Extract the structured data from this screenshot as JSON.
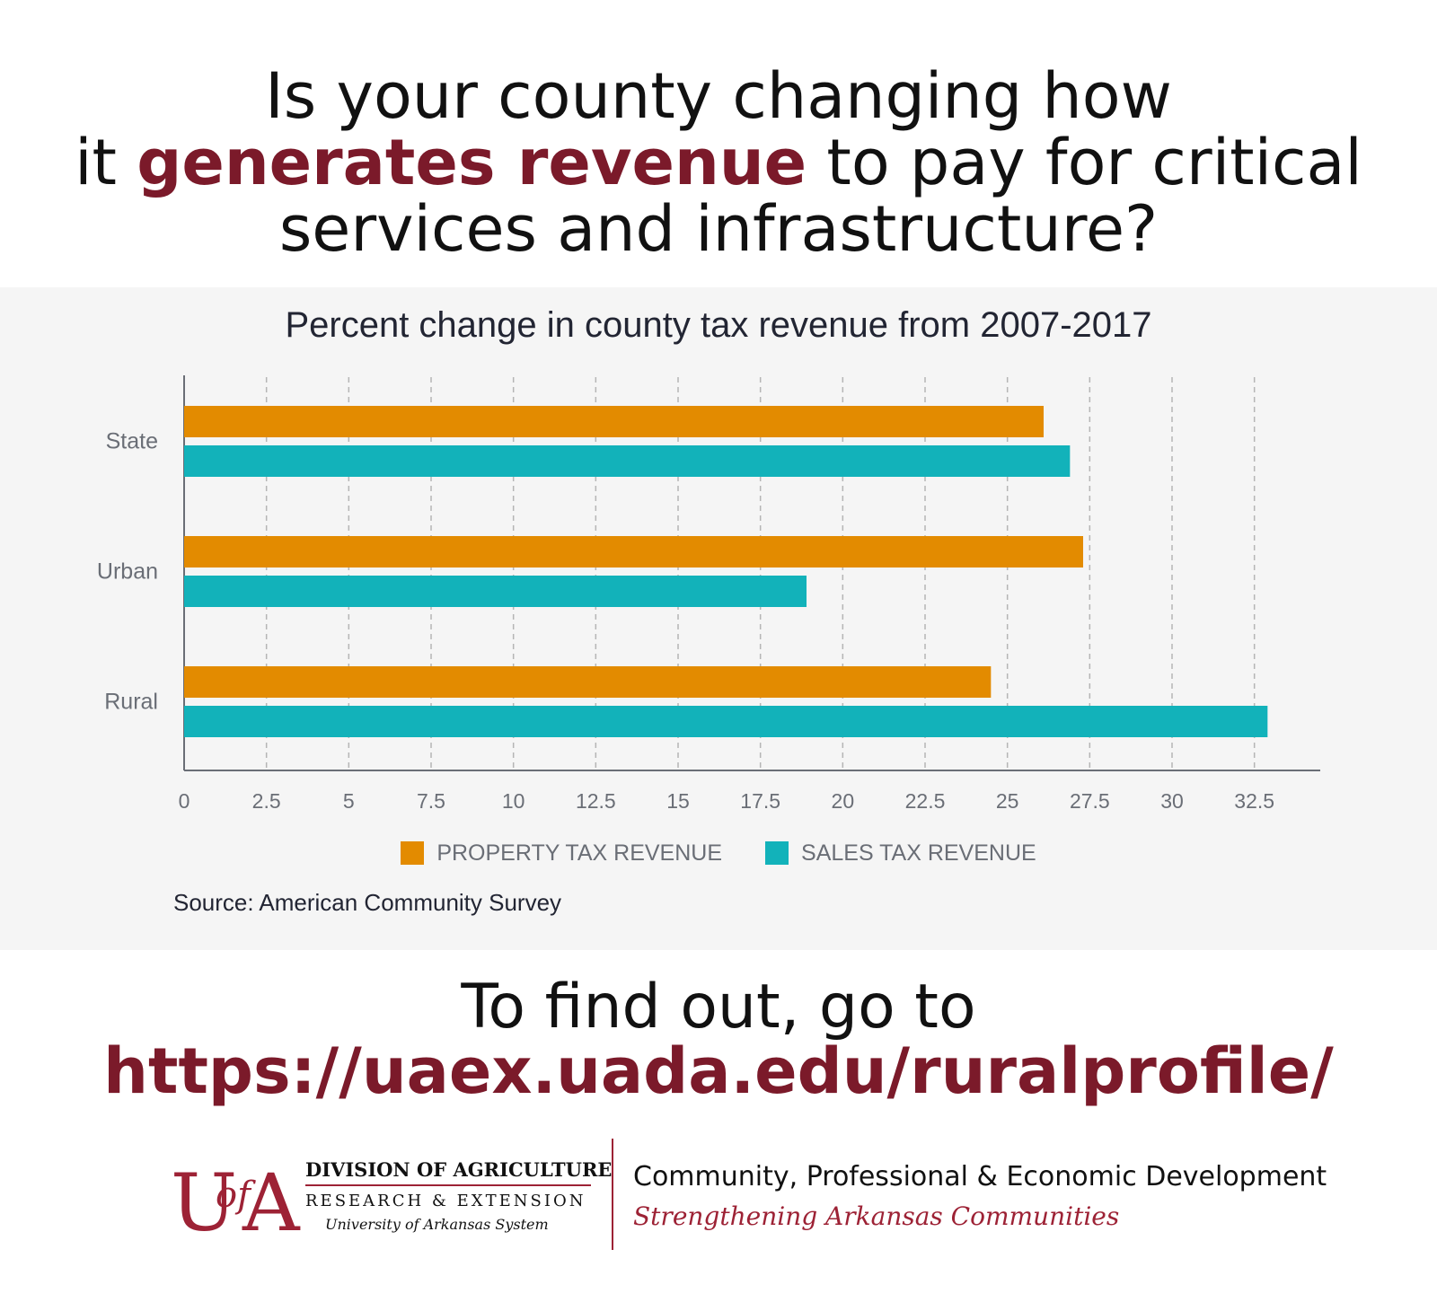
{
  "headline": {
    "line1": "Is your county changing how",
    "line2_pre": "it ",
    "line2_highlight": "generates revenue",
    "line2_post": " to pay for critical",
    "line3": "services and infrastructure?"
  },
  "chart_data": {
    "type": "bar",
    "orientation": "horizontal",
    "title": "Percent change in county tax revenue from 2007-2017",
    "categories": [
      "State",
      "Urban",
      "Rural"
    ],
    "series": [
      {
        "name": "PROPERTY TAX REVENUE",
        "color": "#e38b00",
        "values": [
          26.1,
          27.3,
          24.5
        ]
      },
      {
        "name": "SALES TAX REVENUE",
        "color": "#12b2ba",
        "values": [
          26.9,
          18.9,
          32.9
        ]
      }
    ],
    "xlim": [
      0,
      34.5
    ],
    "xticks": [
      0,
      2.5,
      5,
      7.5,
      10,
      12.5,
      15,
      17.5,
      20,
      22.5,
      25,
      27.5,
      30,
      32.5
    ],
    "xtick_labels": [
      "0",
      "2.5",
      "5",
      "7.5",
      "10",
      "12.5",
      "15",
      "17.5",
      "20",
      "22.5",
      "25",
      "27.5",
      "30",
      "32.5"
    ],
    "grid": "vertical dashed",
    "legend_placement": "bottom-center",
    "source": "Source: American Community Survey"
  },
  "cta": {
    "line1": "To find out, go to",
    "url": "https://uaex.uada.edu/ruralprofile/"
  },
  "logo": {
    "division": "DIVISION OF AGRICULTURE",
    "research": "RESEARCH & EXTENSION",
    "system": "University of Arkansas System",
    "cped": "Community, Professional & Economic Development",
    "tagline": "Strengthening Arkansas Communities"
  },
  "colors": {
    "accent": "#7b1a2a",
    "logo_red": "#9d2235",
    "property": "#e38b00",
    "sales": "#12b2ba",
    "panel": "#f5f5f5"
  }
}
